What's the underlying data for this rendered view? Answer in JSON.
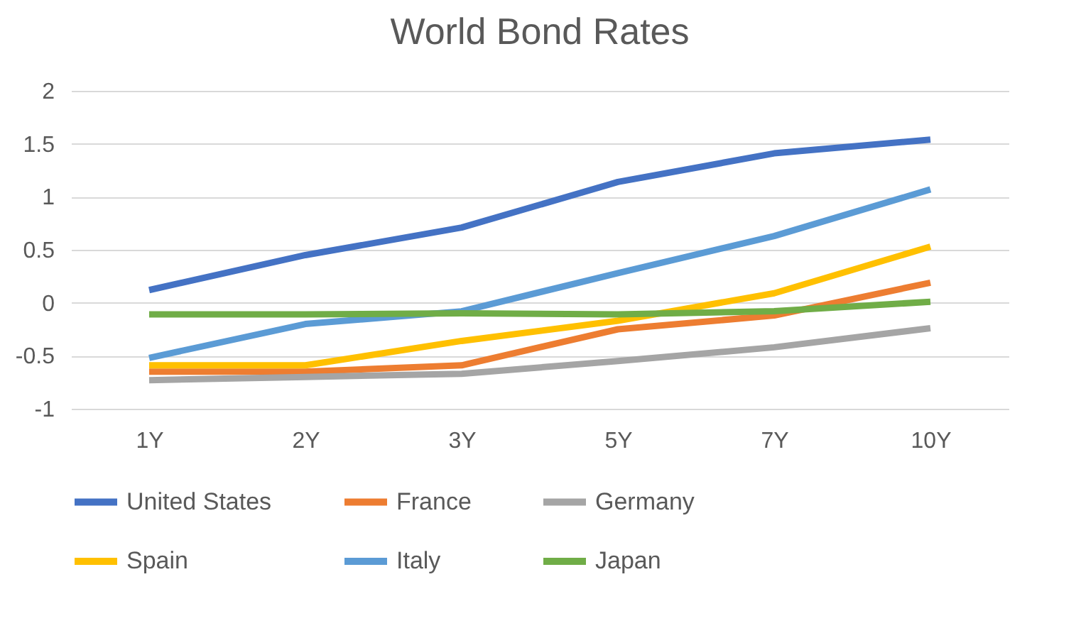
{
  "chart_data": {
    "type": "line",
    "title": "World Bond Rates",
    "categories": [
      "1Y",
      "2Y",
      "3Y",
      "5Y",
      "7Y",
      "10Y"
    ],
    "series": [
      {
        "name": "United States",
        "color": "#4472c4",
        "values": [
          0.12,
          0.45,
          0.71,
          1.14,
          1.41,
          1.54
        ]
      },
      {
        "name": "France",
        "color": "#ed7d31",
        "values": [
          -0.65,
          -0.65,
          -0.59,
          -0.25,
          -0.12,
          0.19
        ]
      },
      {
        "name": "Germany",
        "color": "#a5a5a5",
        "values": [
          -0.73,
          -0.7,
          -0.67,
          -0.55,
          -0.42,
          -0.24
        ]
      },
      {
        "name": "Spain",
        "color": "#ffc000",
        "values": [
          -0.59,
          -0.59,
          -0.36,
          -0.17,
          0.09,
          0.53
        ]
      },
      {
        "name": "Italy",
        "color": "#5b9bd5",
        "values": [
          -0.52,
          -0.2,
          -0.08,
          0.28,
          0.63,
          1.07
        ]
      },
      {
        "name": "Japan",
        "color": "#70ad47",
        "values": [
          -0.11,
          -0.11,
          -0.1,
          -0.11,
          -0.08,
          0.01
        ]
      }
    ],
    "ylim": [
      -1,
      2
    ],
    "yticks": [
      -1,
      -0.5,
      0,
      0.5,
      1,
      1.5,
      2
    ],
    "grid": "y",
    "legend": "bottom",
    "marker": "none",
    "line_style": "solid"
  }
}
